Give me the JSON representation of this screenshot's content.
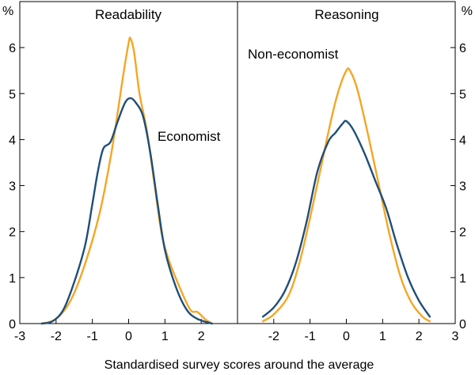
{
  "chart_data": {
    "type": "line",
    "x_axis_title": "Standardised survey scores around the average",
    "y_unit_label": "%",
    "ylim": [
      0,
      7
    ],
    "y_ticks": [
      0,
      1,
      2,
      3,
      4,
      5,
      6
    ],
    "grid": false,
    "colors": {
      "Economist": "#1f4e79",
      "Non-economist": "#f5a623"
    },
    "panels": [
      {
        "title": "Readability",
        "xlim": [
          -3,
          3
        ],
        "x_ticks": [
          -3,
          -2,
          -1,
          0,
          1,
          2
        ],
        "series": [
          {
            "name": "Non-economist",
            "points": [
              [
                -2.4,
                0.0
              ],
              [
                -2.0,
                0.1
              ],
              [
                -1.6,
                0.5
              ],
              [
                -1.2,
                1.3
              ],
              [
                -0.8,
                2.4
              ],
              [
                -0.5,
                3.6
              ],
              [
                -0.3,
                4.6
              ],
              [
                -0.15,
                5.4
              ],
              [
                0.0,
                6.1
              ],
              [
                0.05,
                6.2
              ],
              [
                0.15,
                5.9
              ],
              [
                0.3,
                5.0
              ],
              [
                0.5,
                4.2
              ],
              [
                0.7,
                3.1
              ],
              [
                0.9,
                2.0
              ],
              [
                1.1,
                1.4
              ],
              [
                1.4,
                0.8
              ],
              [
                1.7,
                0.3
              ],
              [
                1.9,
                0.25
              ],
              [
                2.1,
                0.1
              ],
              [
                2.3,
                0.0
              ]
            ]
          },
          {
            "name": "Economist",
            "points": [
              [
                -2.4,
                0.0
              ],
              [
                -2.1,
                0.05
              ],
              [
                -1.8,
                0.3
              ],
              [
                -1.5,
                0.9
              ],
              [
                -1.2,
                1.7
              ],
              [
                -1.0,
                2.6
              ],
              [
                -0.85,
                3.3
              ],
              [
                -0.7,
                3.8
              ],
              [
                -0.5,
                3.95
              ],
              [
                -0.3,
                4.4
              ],
              [
                -0.1,
                4.8
              ],
              [
                0.05,
                4.9
              ],
              [
                0.2,
                4.8
              ],
              [
                0.4,
                4.5
              ],
              [
                0.6,
                3.7
              ],
              [
                0.8,
                2.6
              ],
              [
                1.0,
                1.6
              ],
              [
                1.3,
                0.8
              ],
              [
                1.6,
                0.3
              ],
              [
                1.9,
                0.1
              ],
              [
                2.3,
                0.0
              ]
            ]
          }
        ]
      },
      {
        "title": "Reasoning",
        "xlim": [
          -3,
          3
        ],
        "x_ticks": [
          -2,
          -1,
          0,
          1,
          2,
          3
        ],
        "series": [
          {
            "name": "Non-economist",
            "points": [
              [
                -2.3,
                0.05
              ],
              [
                -2.0,
                0.2
              ],
              [
                -1.6,
                0.6
              ],
              [
                -1.3,
                1.3
              ],
              [
                -1.0,
                2.3
              ],
              [
                -0.7,
                3.4
              ],
              [
                -0.4,
                4.5
              ],
              [
                -0.2,
                5.1
              ],
              [
                0.0,
                5.5
              ],
              [
                0.1,
                5.5
              ],
              [
                0.3,
                5.1
              ],
              [
                0.6,
                4.1
              ],
              [
                0.9,
                3.0
              ],
              [
                1.2,
                1.9
              ],
              [
                1.5,
                1.0
              ],
              [
                1.8,
                0.45
              ],
              [
                2.1,
                0.15
              ],
              [
                2.3,
                0.05
              ]
            ]
          },
          {
            "name": "Economist",
            "points": [
              [
                -2.3,
                0.15
              ],
              [
                -2.0,
                0.35
              ],
              [
                -1.7,
                0.7
              ],
              [
                -1.4,
                1.3
              ],
              [
                -1.1,
                2.2
              ],
              [
                -0.8,
                3.3
              ],
              [
                -0.5,
                3.95
              ],
              [
                -0.3,
                4.15
              ],
              [
                -0.1,
                4.35
              ],
              [
                0.0,
                4.4
              ],
              [
                0.2,
                4.2
              ],
              [
                0.5,
                3.7
              ],
              [
                0.8,
                3.1
              ],
              [
                1.1,
                2.5
              ],
              [
                1.4,
                1.7
              ],
              [
                1.7,
                1.0
              ],
              [
                2.0,
                0.5
              ],
              [
                2.3,
                0.15
              ]
            ]
          }
        ]
      }
    ],
    "series_labels": [
      {
        "panel": 0,
        "text": "Economist"
      },
      {
        "panel": 1,
        "text": "Non-economist"
      }
    ]
  }
}
